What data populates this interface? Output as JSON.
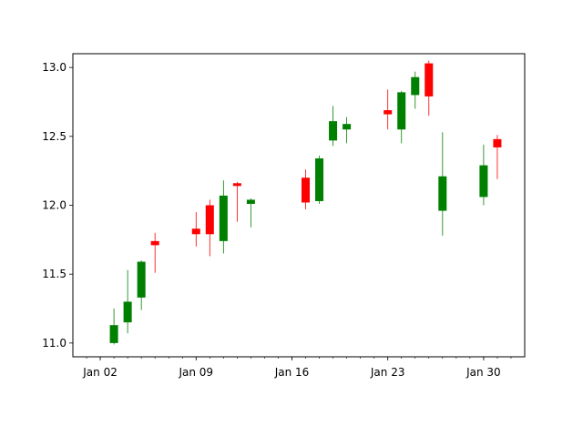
{
  "chart_data": {
    "type": "candlestick",
    "title": "",
    "xlabel": "",
    "ylabel": "",
    "x_range": [
      "2025-12-31",
      "2026-02-02"
    ],
    "ylim": [
      10.9,
      13.1
    ],
    "y_ticks": [
      "11.0",
      "11.5",
      "12.0",
      "12.5",
      "13.0"
    ],
    "x_ticks": [
      {
        "date": "2026-01-02",
        "label": "Jan 02"
      },
      {
        "date": "2026-01-09",
        "label": "Jan 09"
      },
      {
        "date": "2026-01-16",
        "label": "Jan 16"
      },
      {
        "date": "2026-01-23",
        "label": "Jan 23"
      },
      {
        "date": "2026-01-30",
        "label": "Jan 30"
      }
    ],
    "grid": false,
    "colors": {
      "up": "#008000",
      "down": "#ff0000"
    },
    "candles": [
      {
        "date": "2026-01-03",
        "open": 11.0,
        "high": 11.25,
        "low": 10.99,
        "close": 11.13
      },
      {
        "date": "2026-01-04",
        "open": 11.15,
        "high": 11.53,
        "low": 11.07,
        "close": 11.3
      },
      {
        "date": "2026-01-05",
        "open": 11.33,
        "high": 11.6,
        "low": 11.24,
        "close": 11.59
      },
      {
        "date": "2026-01-06",
        "open": 11.74,
        "high": 11.8,
        "low": 11.51,
        "close": 11.71
      },
      {
        "date": "2026-01-09",
        "open": 11.83,
        "high": 11.95,
        "low": 11.7,
        "close": 11.79
      },
      {
        "date": "2026-01-10",
        "open": 12.0,
        "high": 12.04,
        "low": 11.63,
        "close": 11.79
      },
      {
        "date": "2026-01-11",
        "open": 11.74,
        "high": 12.18,
        "low": 11.65,
        "close": 12.07
      },
      {
        "date": "2026-01-12",
        "open": 12.16,
        "high": 12.17,
        "low": 11.88,
        "close": 12.14
      },
      {
        "date": "2026-01-13",
        "open": 12.01,
        "high": 12.05,
        "low": 11.84,
        "close": 12.04
      },
      {
        "date": "2026-01-17",
        "open": 12.2,
        "high": 12.26,
        "low": 11.97,
        "close": 12.02
      },
      {
        "date": "2026-01-18",
        "open": 12.03,
        "high": 12.36,
        "low": 12.01,
        "close": 12.34
      },
      {
        "date": "2026-01-19",
        "open": 12.47,
        "high": 12.72,
        "low": 12.43,
        "close": 12.61
      },
      {
        "date": "2026-01-20",
        "open": 12.55,
        "high": 12.64,
        "low": 12.45,
        "close": 12.59
      },
      {
        "date": "2026-01-23",
        "open": 12.69,
        "high": 12.84,
        "low": 12.55,
        "close": 12.66
      },
      {
        "date": "2026-01-24",
        "open": 12.55,
        "high": 12.83,
        "low": 12.45,
        "close": 12.82
      },
      {
        "date": "2026-01-25",
        "open": 12.8,
        "high": 12.97,
        "low": 12.7,
        "close": 12.93
      },
      {
        "date": "2026-01-26",
        "open": 13.03,
        "high": 13.05,
        "low": 12.65,
        "close": 12.79
      },
      {
        "date": "2026-01-27",
        "open": 11.96,
        "high": 12.53,
        "low": 11.78,
        "close": 12.21
      },
      {
        "date": "2026-01-30",
        "open": 12.06,
        "high": 12.44,
        "low": 12.0,
        "close": 12.29
      },
      {
        "date": "2026-01-31",
        "open": 12.48,
        "high": 12.51,
        "low": 12.19,
        "close": 12.42
      }
    ]
  }
}
